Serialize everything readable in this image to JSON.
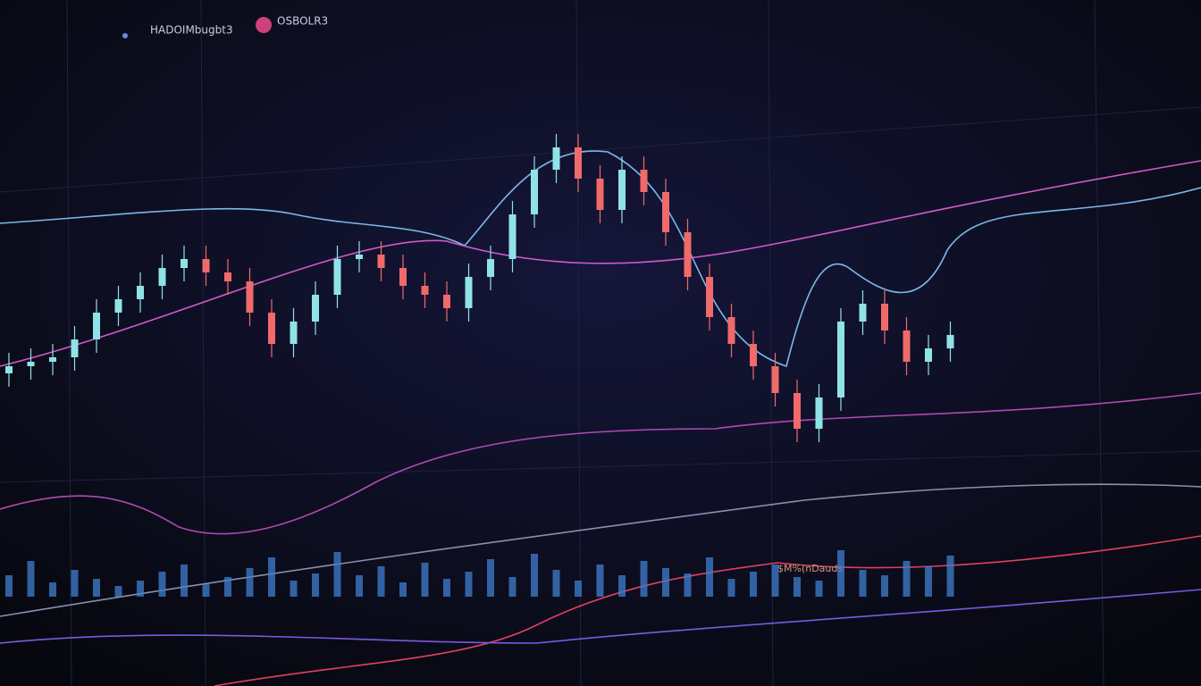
{
  "chart_data": {
    "type": "candlestick",
    "title": "HADOIMbugbt3",
    "subtitle": "OSBOLR3",
    "annotation": "$M%(nDauds",
    "up_color": "#8fe3e6",
    "down_color": "#f06a6a",
    "volume_color": "#3f7fd0",
    "open": [
      350,
      358,
      363,
      368,
      388,
      418,
      433,
      448,
      468,
      478,
      463,
      453,
      418,
      383,
      408,
      438,
      478,
      483,
      468,
      448,
      438,
      423,
      458,
      478,
      528,
      578,
      603,
      568,
      533,
      578,
      553,
      508,
      458,
      413,
      383,
      358,
      328,
      288,
      323,
      408,
      428,
      398,
      363,
      378
    ],
    "high": [
      373,
      378,
      383,
      403,
      433,
      448,
      463,
      483,
      493,
      493,
      478,
      468,
      433,
      423,
      453,
      493,
      498,
      498,
      483,
      463,
      453,
      473,
      493,
      543,
      593,
      618,
      618,
      583,
      593,
      593,
      568,
      523,
      473,
      428,
      398,
      373,
      343,
      338,
      423,
      443,
      443,
      413,
      393,
      408
    ],
    "low": [
      335,
      343,
      348,
      353,
      373,
      403,
      418,
      433,
      453,
      448,
      438,
      403,
      368,
      368,
      393,
      423,
      463,
      453,
      433,
      423,
      408,
      408,
      443,
      463,
      513,
      563,
      553,
      518,
      518,
      538,
      493,
      443,
      398,
      368,
      343,
      313,
      273,
      273,
      308,
      393,
      383,
      348,
      348,
      363
    ],
    "close": [
      358,
      363,
      368,
      388,
      418,
      433,
      448,
      468,
      478,
      463,
      453,
      418,
      383,
      408,
      438,
      478,
      483,
      468,
      448,
      438,
      423,
      458,
      478,
      528,
      578,
      603,
      568,
      533,
      578,
      553,
      508,
      458,
      413,
      383,
      358,
      328,
      288,
      323,
      408,
      428,
      398,
      363,
      378,
      393
    ],
    "volume": [
      12,
      20,
      8,
      15,
      10,
      6,
      9,
      14,
      18,
      7,
      11,
      16,
      22,
      9,
      13,
      25,
      12,
      17,
      8,
      19,
      10,
      14,
      21,
      11,
      24,
      15,
      9,
      18,
      12,
      20,
      16,
      13,
      22,
      10,
      14,
      18,
      11,
      9,
      26,
      15,
      12,
      20,
      17,
      23
    ]
  }
}
